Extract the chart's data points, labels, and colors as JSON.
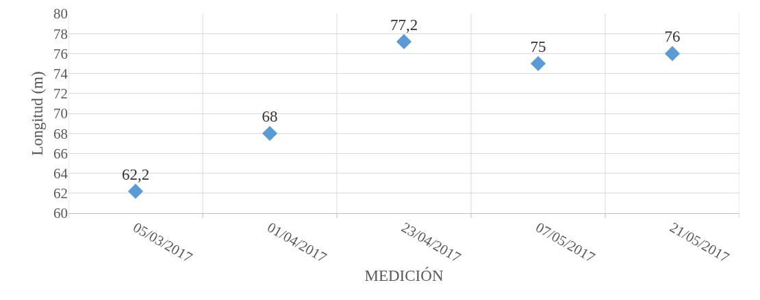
{
  "chart_data": {
    "type": "scatter",
    "xlabel": "MEDICIÓN",
    "ylabel": "Longitud (m)",
    "categories": [
      "05/03/2017",
      "01/04/2017",
      "23/04/2017",
      "07/05/2017",
      "21/05/2017"
    ],
    "values": [
      62.2,
      68,
      77.2,
      75,
      76
    ],
    "value_labels": [
      "62,2",
      "68",
      "77,2",
      "75",
      "76"
    ],
    "color": "#5b9bd5",
    "marker": "diamond",
    "ylim": [
      60,
      80
    ],
    "yticks": [
      60,
      62,
      64,
      66,
      68,
      70,
      72,
      74,
      76,
      78,
      80
    ],
    "grid": true,
    "legend": false
  }
}
